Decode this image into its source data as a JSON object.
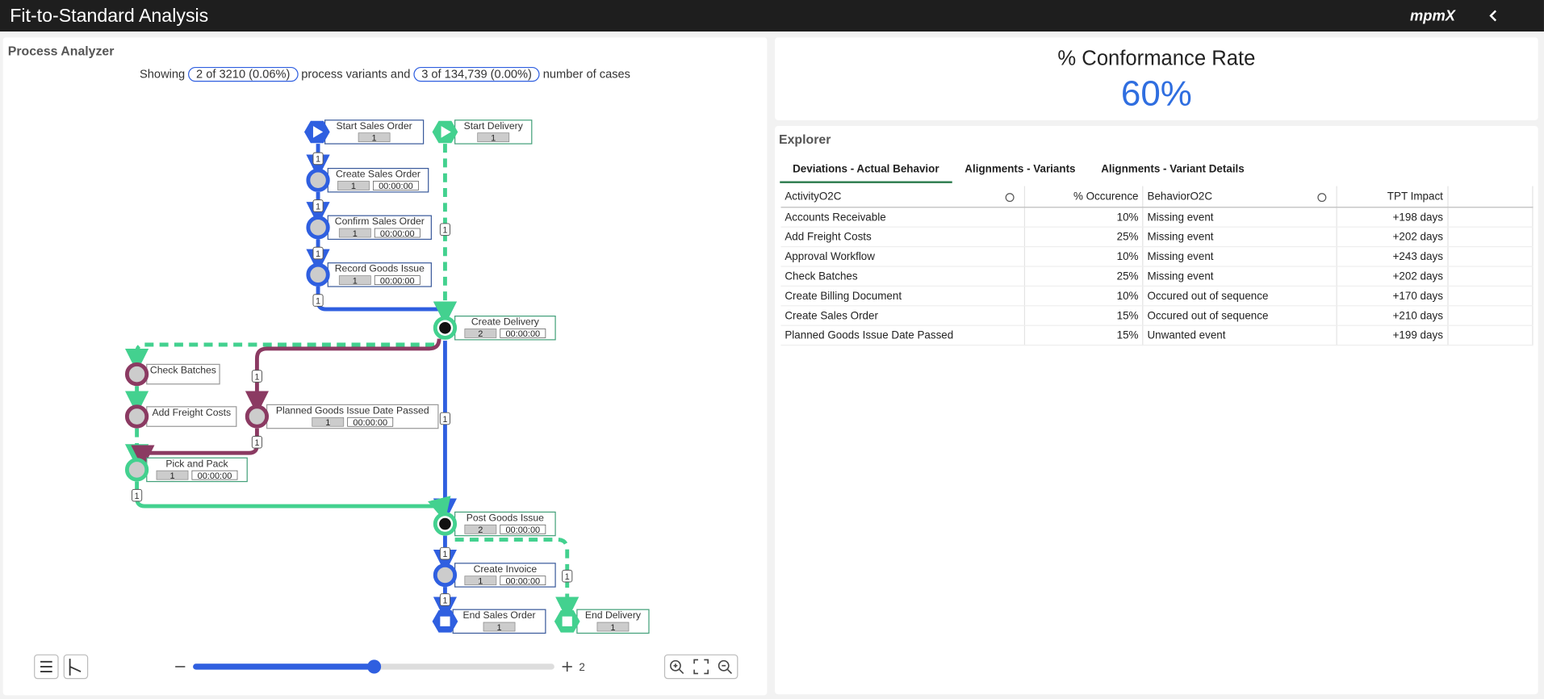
{
  "header": {
    "title": "Fit-to-Standard Analysis",
    "logo": "mpmX"
  },
  "process_analyzer": {
    "title": "Process Analyzer",
    "showing": [
      "Showing",
      "2 of 3210 (0.06%)",
      "process variants and",
      "3 of 134,739 (0.00%)",
      "number of cases"
    ],
    "nodes": [
      {
        "label": "Start Sales Order",
        "count": 1
      },
      {
        "label": "Start Delivery",
        "count": 1
      },
      {
        "label": "Create Sales Order",
        "count": 1,
        "time": "00:00:00"
      },
      {
        "label": "Confirm Sales Order",
        "count": 1,
        "time": "00:00:00"
      },
      {
        "label": "Record Goods Issue",
        "count": 1,
        "time": "00:00:00"
      },
      {
        "label": "Create Delivery",
        "count": 2,
        "time": "00:00:00"
      },
      {
        "label": "Check Batches"
      },
      {
        "label": "Add Freight Costs"
      },
      {
        "label": "Planned Goods Issue Date Passed",
        "count": 1,
        "time": "00:00:00"
      },
      {
        "label": "Pick and Pack",
        "count": 1,
        "time": "00:00:00"
      },
      {
        "label": "Post Goods Issue",
        "count": 2,
        "time": "00:00:00"
      },
      {
        "label": "Create Invoice",
        "count": 1,
        "time": "00:00:00"
      },
      {
        "label": "End Sales Order",
        "count": 1
      },
      {
        "label": "End Delivery",
        "count": 1
      }
    ],
    "edge_counts": [
      1,
      1,
      1,
      1,
      1,
      1,
      1,
      1,
      1,
      1,
      1,
      1
    ],
    "zoom_level": 2
  },
  "conformance": {
    "title": "% Conformance Rate",
    "value": "60%"
  },
  "explorer": {
    "title": "Explorer",
    "tabs": [
      "Deviations - Actual Behavior",
      "Alignments - Variants",
      "Alignments - Variant Details"
    ],
    "table": {
      "columns": [
        "ActivityO2C",
        "% Occurence",
        "BehaviorO2C",
        "TPT Impact"
      ],
      "rows": [
        [
          "Accounts Receivable",
          "10%",
          "Missing event",
          "+198 days"
        ],
        [
          "Add Freight Costs",
          "25%",
          "Missing event",
          "+202 days"
        ],
        [
          "Approval Workflow",
          "10%",
          "Missing event",
          "+243 days"
        ],
        [
          "Check Batches",
          "25%",
          "Missing event",
          "+202 days"
        ],
        [
          "Create Billing Document",
          "10%",
          "Occured out of sequence",
          "+170 days"
        ],
        [
          "Create Sales Order",
          "15%",
          "Occured out of sequence",
          "+210 days"
        ],
        [
          "Planned Goods Issue Date Passed",
          "15%",
          "Unwanted event",
          "+199 days"
        ]
      ]
    }
  }
}
